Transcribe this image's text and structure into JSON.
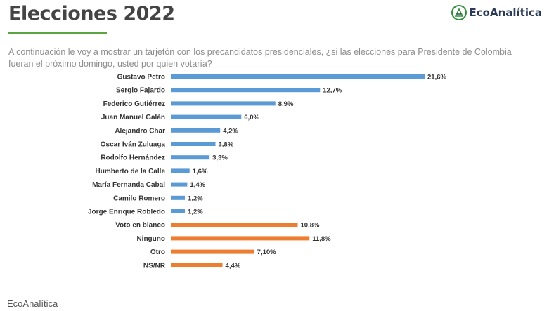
{
  "header": {
    "title": "Elecciones 2022",
    "logo_text": "EcoAnalítica",
    "accent_color": "#5aa541"
  },
  "question": "A continuación le voy a mostrar un tarjetón con los precandidatos presidenciales, ¿si las elecciones para Presidente de Colombia fueran el próximo domingo, usted por quien votaría?",
  "caption": "EcoAnalítica",
  "chart_data": {
    "type": "bar",
    "orientation": "horizontal",
    "categories": [
      "Gustavo Petro",
      "Sergio Fajardo",
      "Federico Gutiérrez",
      "Juan Manuel Galán",
      "Alejandro Char",
      "Oscar Iván Zuluaga",
      "Rodolfo Hernández",
      "Humberto de la Calle",
      "María Fernanda Cabal",
      "Camilo Romero",
      "Jorge Enrique Robledo",
      "Voto en blanco",
      "Ninguno",
      "Otro",
      "NS/NR"
    ],
    "values": [
      21.6,
      12.7,
      8.9,
      6.0,
      4.2,
      3.8,
      3.3,
      1.6,
      1.4,
      1.2,
      1.2,
      10.8,
      11.8,
      7.1,
      4.4
    ],
    "value_labels": [
      "21,6%",
      "12,7%",
      "8,9%",
      "6,0%",
      "4,2%",
      "3,8%",
      "3,3%",
      "1,6%",
      "1,4%",
      "1,2%",
      "1,2%",
      "10,8%",
      "11,8%",
      "7,10%",
      "4,4%"
    ],
    "colors": [
      "#5b9bd5",
      "#5b9bd5",
      "#5b9bd5",
      "#5b9bd5",
      "#5b9bd5",
      "#5b9bd5",
      "#5b9bd5",
      "#5b9bd5",
      "#5b9bd5",
      "#5b9bd5",
      "#5b9bd5",
      "#ed7d31",
      "#ed7d31",
      "#ed7d31",
      "#ed7d31"
    ],
    "xlim": [
      0,
      21.6
    ],
    "grid": false,
    "legend": "none"
  }
}
